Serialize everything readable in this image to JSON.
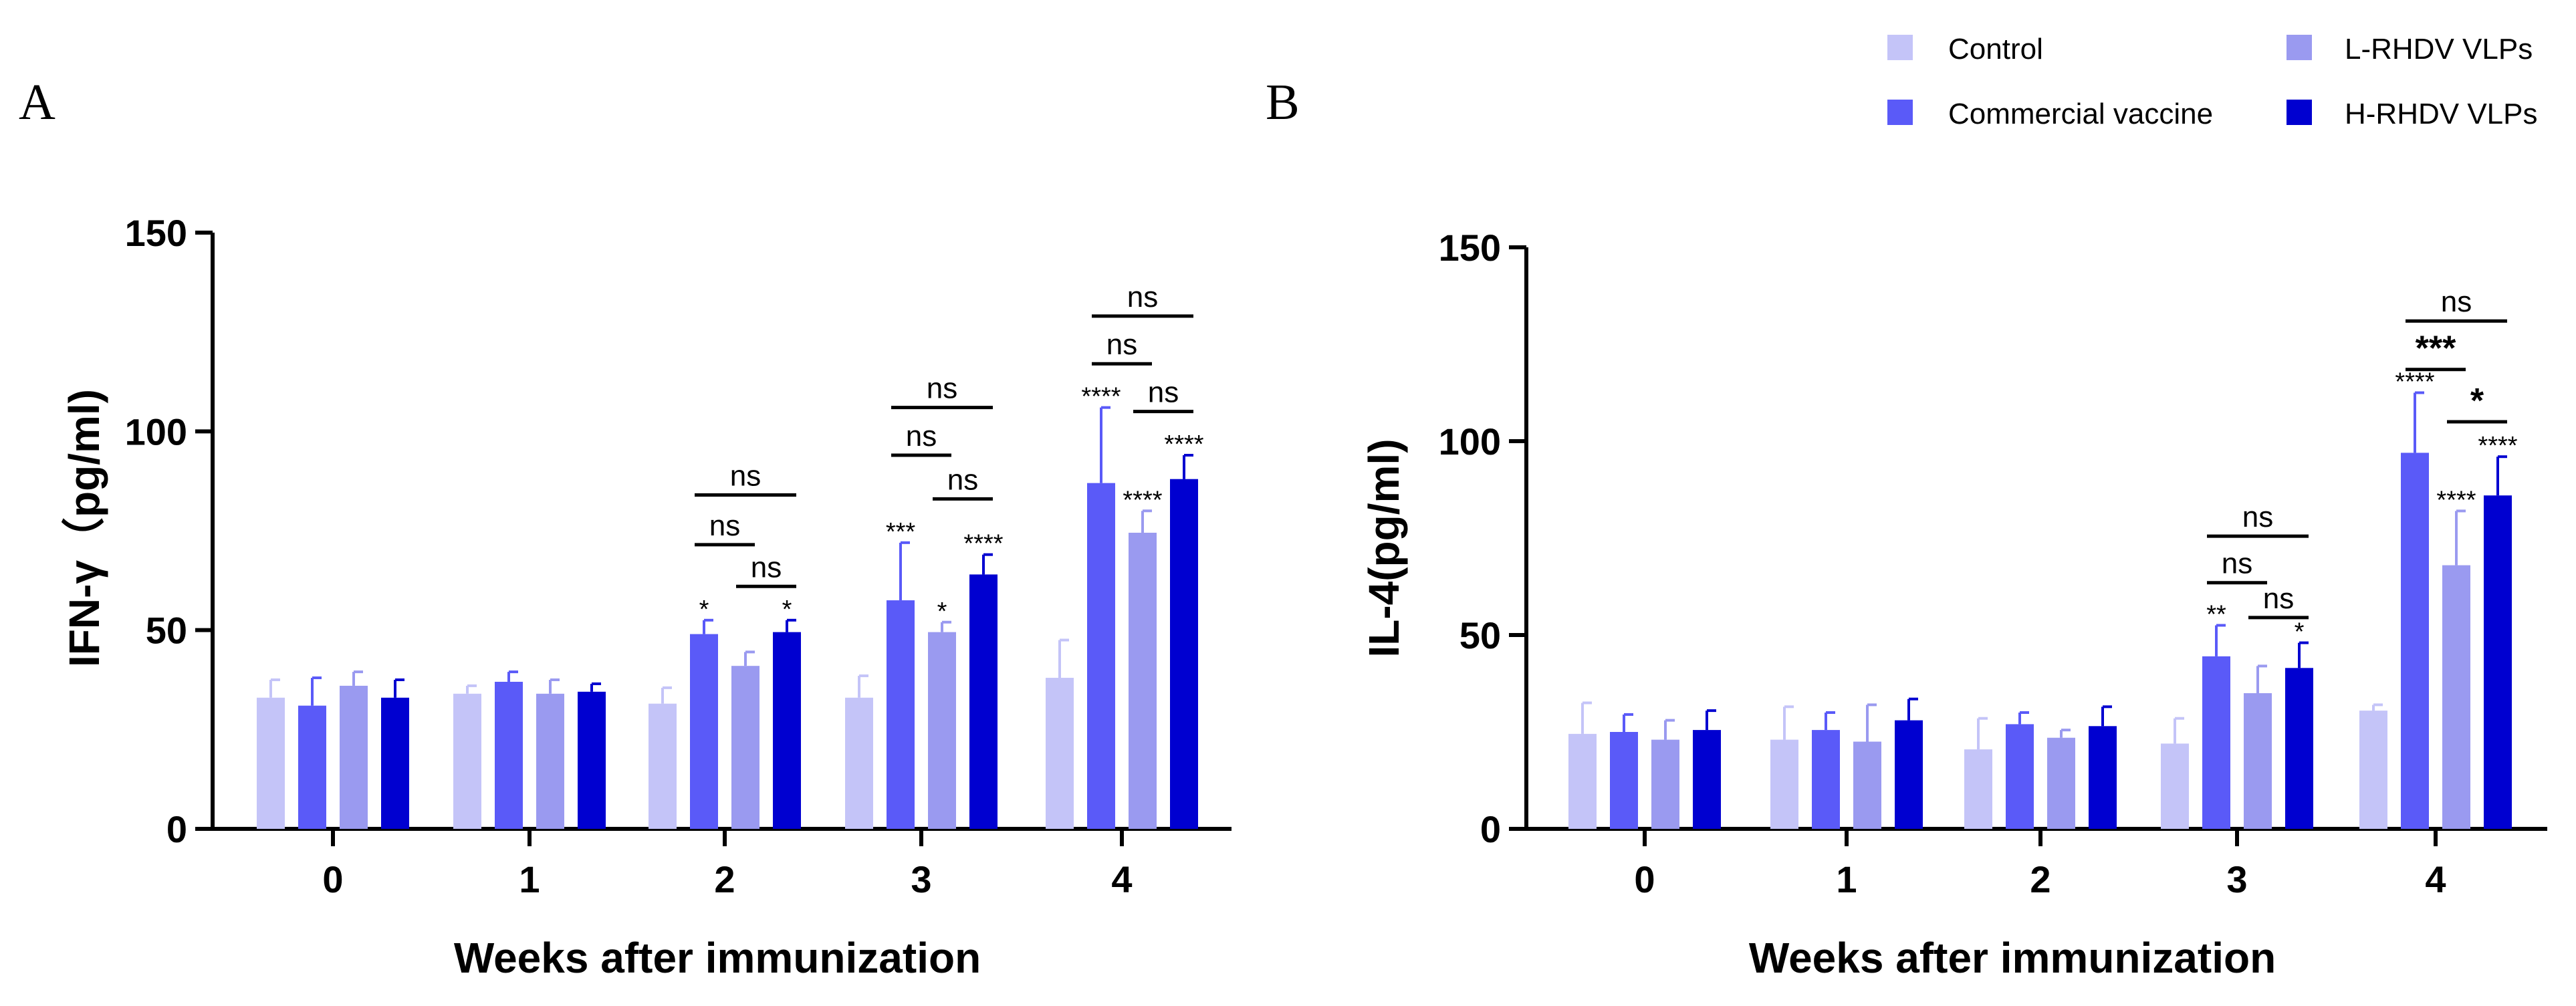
{
  "legend": [
    {
      "name": "Control",
      "color": "#c4c4f8"
    },
    {
      "name": "Commercial vaccine",
      "color": "#5a5af8"
    },
    {
      "name": "L-RHDV VLPs",
      "color": "#9a9af0"
    },
    {
      "name": "H-RHDV VLPs",
      "color": "#0000d0"
    }
  ],
  "chart_data": [
    {
      "panel": "A",
      "type": "bar",
      "ylabel": "IFN-γ（pg/ml)",
      "xlabel": "Weeks after immunization",
      "categories": [
        "0",
        "1",
        "2",
        "3",
        "4"
      ],
      "ylim": [
        0,
        150
      ],
      "yticks": [
        0,
        50,
        100,
        150
      ],
      "series": [
        {
          "name": "Control",
          "values": [
            33,
            34,
            31.5,
            33,
            38
          ],
          "errors": [
            4.5,
            2,
            4,
            5.5,
            9.5
          ]
        },
        {
          "name": "Commercial vaccine",
          "values": [
            31,
            37,
            49,
            57.5,
            87
          ],
          "errors": [
            7,
            2.5,
            3.5,
            14.5,
            19
          ]
        },
        {
          "name": "L-RHDV VLPs",
          "values": [
            36,
            34,
            41,
            49.5,
            74.5
          ],
          "errors": [
            3.5,
            3.5,
            3.5,
            2.5,
            5.5
          ]
        },
        {
          "name": "H-RHDV VLPs",
          "values": [
            33,
            34.5,
            49.5,
            64,
            88
          ],
          "errors": [
            4.5,
            2,
            3,
            5,
            6
          ]
        }
      ],
      "bar_stars": [
        {
          "group": 2,
          "series": 1,
          "text": "*"
        },
        {
          "group": 2,
          "series": 3,
          "text": "*"
        },
        {
          "group": 3,
          "series": 1,
          "text": "***"
        },
        {
          "group": 3,
          "series": 2,
          "text": "*"
        },
        {
          "group": 3,
          "series": 3,
          "text": "****"
        },
        {
          "group": 4,
          "series": 1,
          "text": "****"
        },
        {
          "group": 4,
          "series": 2,
          "text": "****"
        },
        {
          "group": 4,
          "series": 3,
          "text": "****"
        }
      ],
      "brackets": [
        {
          "group": 2,
          "from": 1,
          "to": 3,
          "y": 84,
          "text": "ns"
        },
        {
          "group": 2,
          "from": 1,
          "to": 2,
          "y": 71.5,
          "text": "ns"
        },
        {
          "group": 2,
          "from": 2,
          "to": 3,
          "y": 61,
          "text": "ns"
        },
        {
          "group": 3,
          "from": 1,
          "to": 3,
          "y": 106,
          "text": "ns"
        },
        {
          "group": 3,
          "from": 1,
          "to": 2,
          "y": 94,
          "text": "ns"
        },
        {
          "group": 3,
          "from": 2,
          "to": 3,
          "y": 83,
          "text": "ns"
        },
        {
          "group": 4,
          "from": 1,
          "to": 3,
          "y": 129,
          "text": "ns"
        },
        {
          "group": 4,
          "from": 1,
          "to": 2,
          "y": 117,
          "text": "ns"
        },
        {
          "group": 4,
          "from": 2,
          "to": 3,
          "y": 105,
          "text": "ns"
        }
      ]
    },
    {
      "panel": "B",
      "type": "bar",
      "ylabel": "IL-4(pg/ml)",
      "xlabel": "Weeks after immunization",
      "categories": [
        "0",
        "1",
        "2",
        "3",
        "4"
      ],
      "ylim": [
        0,
        150
      ],
      "yticks": [
        0,
        50,
        100,
        150
      ],
      "series": [
        {
          "name": "Control",
          "values": [
            24.5,
            23,
            20.5,
            22,
            30.5
          ],
          "errors": [
            8,
            8.5,
            8,
            6.5,
            1.5
          ]
        },
        {
          "name": "Commercial vaccine",
          "values": [
            25,
            25.5,
            27,
            44.5,
            97
          ],
          "errors": [
            4.5,
            4.5,
            3,
            8,
            15.5
          ]
        },
        {
          "name": "L-RHDV VLPs",
          "values": [
            23,
            22.5,
            23.5,
            35,
            68
          ],
          "errors": [
            5,
            9.5,
            2,
            7,
            14
          ]
        },
        {
          "name": "H-RHDV VLPs",
          "values": [
            25.5,
            28,
            26.5,
            41.5,
            86
          ],
          "errors": [
            5,
            5.5,
            5,
            6.5,
            10
          ]
        }
      ],
      "bar_stars": [
        {
          "group": 3,
          "series": 1,
          "text": "**",
          "big": false
        },
        {
          "group": 3,
          "series": 3,
          "text": "*",
          "big": false
        },
        {
          "group": 4,
          "series": 1,
          "text": "****",
          "big": false
        },
        {
          "group": 4,
          "series": 2,
          "text": "****",
          "big": false
        },
        {
          "group": 4,
          "series": 3,
          "text": "****",
          "big": false
        }
      ],
      "brackets": [
        {
          "group": 3,
          "from": 1,
          "to": 3,
          "y": 75.5,
          "text": "ns"
        },
        {
          "group": 3,
          "from": 1,
          "to": 2,
          "y": 63.5,
          "text": "ns"
        },
        {
          "group": 3,
          "from": 2,
          "to": 3,
          "y": 54.5,
          "text": "ns"
        },
        {
          "group": 4,
          "from": 1,
          "to": 3,
          "y": 131,
          "text": "ns"
        },
        {
          "group": 4,
          "from": 1,
          "to": 2,
          "y": 118.5,
          "text": "***",
          "big": true
        },
        {
          "group": 4,
          "from": 2,
          "to": 3,
          "y": 105,
          "text": "*",
          "big": true
        }
      ]
    }
  ]
}
